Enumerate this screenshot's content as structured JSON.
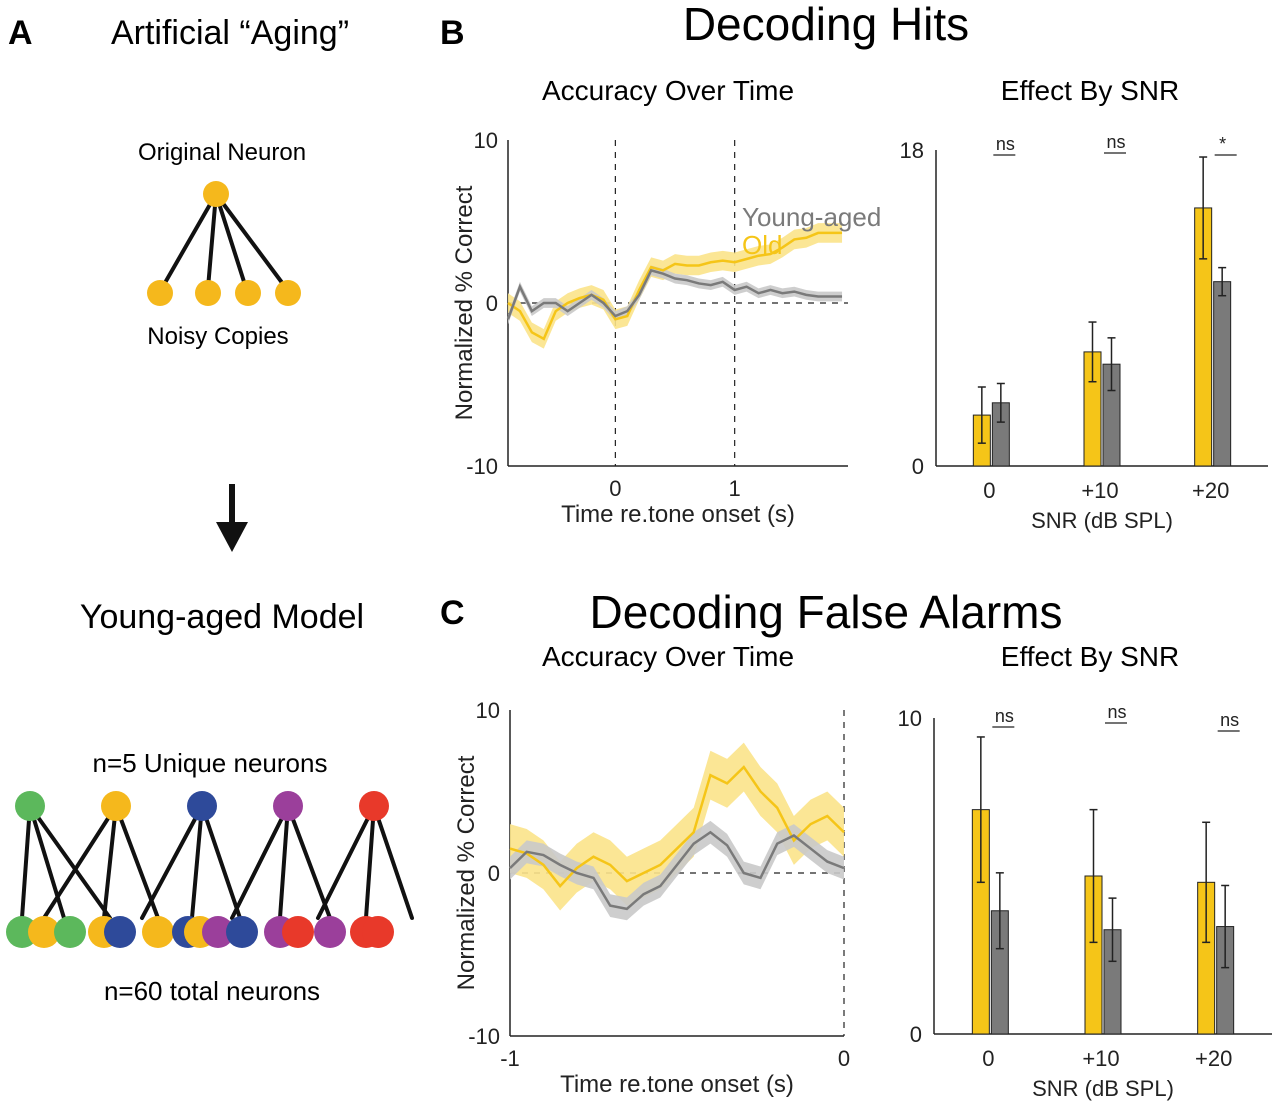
{
  "colors": {
    "old": "#f5c518",
    "old_band": "#fbe38a",
    "young": "#7a7a7a",
    "young_band": "#c9c9c9",
    "green": "#5cb85c",
    "yellow": "#f5b81c",
    "blue": "#2e4a9a",
    "purple": "#9b3f9b",
    "red": "#e8392a"
  },
  "panel_a": {
    "letter": "A",
    "title": "Artificial “Aging”",
    "original_neuron_label": "Original Neuron",
    "noisy_copies_label": "Noisy Copies",
    "model_title": "Young-aged Model",
    "unique_label": "n=5 Unique neurons",
    "total_label": "n=60 total neurons",
    "bottom_row_colors": [
      "green",
      "yellow",
      "green",
      "yellow",
      "blue",
      "yellow",
      "blue",
      "yellow",
      "purple",
      "blue",
      "purple",
      "red",
      "purple",
      "red",
      "red"
    ]
  },
  "panel_b": {
    "letter": "B",
    "title": "Decoding Hits",
    "left_subtitle": "Accuracy Over Time",
    "right_subtitle": "Effect By SNR"
  },
  "panel_c": {
    "letter": "C",
    "title": "Decoding False Alarms",
    "left_subtitle": "Accuracy Over Time",
    "right_subtitle": "Effect By SNR"
  },
  "chart_data": [
    {
      "id": "b_time",
      "type": "line",
      "xlabel": "Time re.tone onset (s)",
      "ylabel": "Normalized % Correct",
      "xlim": [
        -0.9,
        1.95
      ],
      "ylim": [
        -10,
        10
      ],
      "xticks": [
        0,
        1
      ],
      "xtick_labels": [
        "0",
        "1"
      ],
      "yticks": [
        -10,
        0,
        10
      ],
      "ytick_labels": [
        "-10",
        "0",
        "10"
      ],
      "vlines": [
        0,
        1
      ],
      "hline": 0,
      "legend": [
        "Young-aged",
        "Old"
      ],
      "series": [
        {
          "name": "Old",
          "color_key": "old",
          "band": 0.6,
          "x": [
            -0.9,
            -0.8,
            -0.7,
            -0.6,
            -0.5,
            -0.4,
            -0.3,
            -0.2,
            -0.1,
            0,
            0.1,
            0.2,
            0.3,
            0.4,
            0.5,
            0.6,
            0.7,
            0.8,
            0.9,
            1.0,
            1.1,
            1.2,
            1.3,
            1.4,
            1.5,
            1.6,
            1.7,
            1.8,
            1.9
          ],
          "y": [
            0,
            -0.5,
            -1.8,
            -2.2,
            -0.5,
            0,
            0.3,
            0.5,
            0.2,
            -1,
            -0.8,
            0.8,
            2.2,
            2,
            2.4,
            2.3,
            2.3,
            2.5,
            2.6,
            2.5,
            2.7,
            2.9,
            3,
            3.4,
            3.9,
            4,
            4.3,
            4.3,
            4.3
          ]
        },
        {
          "name": "Young-aged",
          "color_key": "young",
          "band": 0.3,
          "x": [
            -0.9,
            -0.8,
            -0.7,
            -0.6,
            -0.5,
            -0.4,
            -0.3,
            -0.2,
            -0.1,
            0,
            0.1,
            0.2,
            0.3,
            0.4,
            0.5,
            0.6,
            0.7,
            0.8,
            0.9,
            1.0,
            1.1,
            1.2,
            1.3,
            1.4,
            1.5,
            1.6,
            1.7,
            1.8,
            1.9
          ],
          "y": [
            -1,
            1,
            -0.5,
            0,
            0,
            -0.5,
            0,
            0.5,
            0,
            -0.8,
            -0.5,
            0.5,
            2,
            1.8,
            1.5,
            1.4,
            1.2,
            1.1,
            1.3,
            0.8,
            1,
            0.6,
            0.8,
            0.6,
            0.7,
            0.5,
            0.4,
            0.4,
            0.4
          ]
        }
      ]
    },
    {
      "id": "b_snr",
      "type": "bar",
      "xlabel": "SNR (dB SPL)",
      "categories": [
        "0",
        "+10",
        "+20"
      ],
      "ylim": [
        0,
        18
      ],
      "yticks": [
        0,
        18
      ],
      "ytick_labels": [
        "0",
        "18"
      ],
      "series": [
        {
          "name": "Old",
          "color_key": "old",
          "values": [
            2.9,
            6.5,
            14.7
          ],
          "errors": [
            1.6,
            1.7,
            2.9
          ]
        },
        {
          "name": "Young-aged",
          "color_key": "young",
          "values": [
            3.6,
            5.8,
            10.5
          ],
          "errors": [
            1.1,
            1.5,
            0.8
          ]
        }
      ],
      "significance": [
        "ns",
        "ns",
        "*"
      ]
    },
    {
      "id": "c_time",
      "type": "line",
      "xlabel": "Time re.tone onset (s)",
      "ylabel": "Normalized % Correct",
      "xlim": [
        -1,
        0
      ],
      "ylim": [
        -10,
        10
      ],
      "xticks": [
        -1,
        0
      ],
      "xtick_labels": [
        "-1",
        "0"
      ],
      "yticks": [
        -10,
        0,
        10
      ],
      "ytick_labels": [
        "-10",
        "0",
        "10"
      ],
      "vlines": [
        0
      ],
      "hline": 0,
      "series": [
        {
          "name": "Old",
          "color_key": "old",
          "band": 1.5,
          "x": [
            -1,
            -0.95,
            -0.9,
            -0.85,
            -0.8,
            -0.75,
            -0.7,
            -0.65,
            -0.6,
            -0.55,
            -0.5,
            -0.45,
            -0.4,
            -0.35,
            -0.3,
            -0.25,
            -0.2,
            -0.15,
            -0.1,
            -0.05,
            0
          ],
          "y": [
            1.5,
            1.2,
            0.5,
            -0.8,
            0.3,
            1,
            0.5,
            -0.5,
            0,
            0.5,
            1.5,
            2.5,
            6,
            5.5,
            6.5,
            5,
            4,
            2,
            3,
            3.5,
            2.5
          ]
        },
        {
          "name": "Young-aged",
          "color_key": "young",
          "band": 0.7,
          "x": [
            -1,
            -0.95,
            -0.9,
            -0.85,
            -0.8,
            -0.75,
            -0.7,
            -0.65,
            -0.6,
            -0.55,
            -0.5,
            -0.45,
            -0.4,
            -0.35,
            -0.3,
            -0.25,
            -0.2,
            -0.15,
            -0.1,
            -0.05,
            0
          ],
          "y": [
            0.3,
            1.3,
            1.1,
            0.5,
            0,
            -0.3,
            -2,
            -2.2,
            -1.3,
            -0.8,
            0.5,
            1.8,
            2.5,
            1.7,
            0,
            -0.3,
            1.8,
            2.3,
            1.5,
            0.7,
            0.3
          ]
        }
      ]
    },
    {
      "id": "c_snr",
      "type": "bar",
      "xlabel": "SNR (dB SPL)",
      "categories": [
        "0",
        "+10",
        "+20"
      ],
      "ylim": [
        0,
        10
      ],
      "yticks": [
        0,
        10
      ],
      "ytick_labels": [
        "0",
        "10"
      ],
      "series": [
        {
          "name": "Old",
          "color_key": "old",
          "values": [
            7.1,
            5.0,
            4.8
          ],
          "errors": [
            2.3,
            2.1,
            1.9
          ]
        },
        {
          "name": "Young-aged",
          "color_key": "young",
          "values": [
            3.9,
            3.3,
            3.4
          ],
          "errors": [
            1.2,
            1.0,
            1.3
          ]
        }
      ],
      "significance": [
        "ns",
        "ns",
        "ns"
      ]
    }
  ]
}
